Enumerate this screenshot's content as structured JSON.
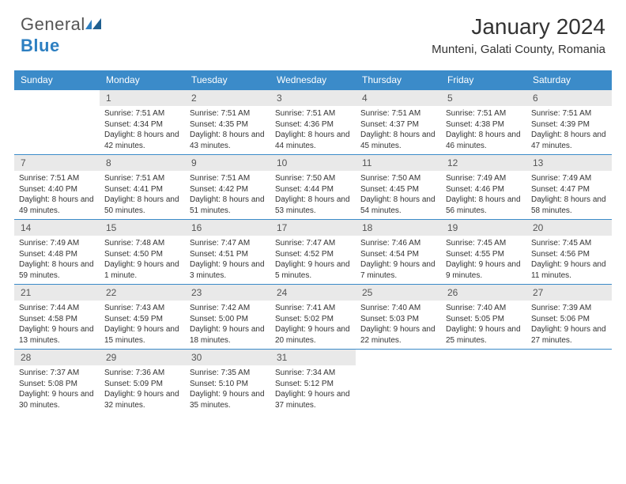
{
  "brand": {
    "part1": "General",
    "part2": "Blue"
  },
  "title": "January 2024",
  "location": "Munteni, Galati County, Romania",
  "colors": {
    "header_bg": "#3b8bc9",
    "daynum_bg": "#e9e9e9",
    "brand_blue": "#2d7fc1",
    "row_border": "#3b8bc9"
  },
  "weekdays": [
    "Sunday",
    "Monday",
    "Tuesday",
    "Wednesday",
    "Thursday",
    "Friday",
    "Saturday"
  ],
  "grid": [
    [
      null,
      {
        "n": "1",
        "sr": "7:51 AM",
        "ss": "4:34 PM",
        "dl": "8 hours and 42 minutes."
      },
      {
        "n": "2",
        "sr": "7:51 AM",
        "ss": "4:35 PM",
        "dl": "8 hours and 43 minutes."
      },
      {
        "n": "3",
        "sr": "7:51 AM",
        "ss": "4:36 PM",
        "dl": "8 hours and 44 minutes."
      },
      {
        "n": "4",
        "sr": "7:51 AM",
        "ss": "4:37 PM",
        "dl": "8 hours and 45 minutes."
      },
      {
        "n": "5",
        "sr": "7:51 AM",
        "ss": "4:38 PM",
        "dl": "8 hours and 46 minutes."
      },
      {
        "n": "6",
        "sr": "7:51 AM",
        "ss": "4:39 PM",
        "dl": "8 hours and 47 minutes."
      }
    ],
    [
      {
        "n": "7",
        "sr": "7:51 AM",
        "ss": "4:40 PM",
        "dl": "8 hours and 49 minutes."
      },
      {
        "n": "8",
        "sr": "7:51 AM",
        "ss": "4:41 PM",
        "dl": "8 hours and 50 minutes."
      },
      {
        "n": "9",
        "sr": "7:51 AM",
        "ss": "4:42 PM",
        "dl": "8 hours and 51 minutes."
      },
      {
        "n": "10",
        "sr": "7:50 AM",
        "ss": "4:44 PM",
        "dl": "8 hours and 53 minutes."
      },
      {
        "n": "11",
        "sr": "7:50 AM",
        "ss": "4:45 PM",
        "dl": "8 hours and 54 minutes."
      },
      {
        "n": "12",
        "sr": "7:49 AM",
        "ss": "4:46 PM",
        "dl": "8 hours and 56 minutes."
      },
      {
        "n": "13",
        "sr": "7:49 AM",
        "ss": "4:47 PM",
        "dl": "8 hours and 58 minutes."
      }
    ],
    [
      {
        "n": "14",
        "sr": "7:49 AM",
        "ss": "4:48 PM",
        "dl": "8 hours and 59 minutes."
      },
      {
        "n": "15",
        "sr": "7:48 AM",
        "ss": "4:50 PM",
        "dl": "9 hours and 1 minute."
      },
      {
        "n": "16",
        "sr": "7:47 AM",
        "ss": "4:51 PM",
        "dl": "9 hours and 3 minutes."
      },
      {
        "n": "17",
        "sr": "7:47 AM",
        "ss": "4:52 PM",
        "dl": "9 hours and 5 minutes."
      },
      {
        "n": "18",
        "sr": "7:46 AM",
        "ss": "4:54 PM",
        "dl": "9 hours and 7 minutes."
      },
      {
        "n": "19",
        "sr": "7:45 AM",
        "ss": "4:55 PM",
        "dl": "9 hours and 9 minutes."
      },
      {
        "n": "20",
        "sr": "7:45 AM",
        "ss": "4:56 PM",
        "dl": "9 hours and 11 minutes."
      }
    ],
    [
      {
        "n": "21",
        "sr": "7:44 AM",
        "ss": "4:58 PM",
        "dl": "9 hours and 13 minutes."
      },
      {
        "n": "22",
        "sr": "7:43 AM",
        "ss": "4:59 PM",
        "dl": "9 hours and 15 minutes."
      },
      {
        "n": "23",
        "sr": "7:42 AM",
        "ss": "5:00 PM",
        "dl": "9 hours and 18 minutes."
      },
      {
        "n": "24",
        "sr": "7:41 AM",
        "ss": "5:02 PM",
        "dl": "9 hours and 20 minutes."
      },
      {
        "n": "25",
        "sr": "7:40 AM",
        "ss": "5:03 PM",
        "dl": "9 hours and 22 minutes."
      },
      {
        "n": "26",
        "sr": "7:40 AM",
        "ss": "5:05 PM",
        "dl": "9 hours and 25 minutes."
      },
      {
        "n": "27",
        "sr": "7:39 AM",
        "ss": "5:06 PM",
        "dl": "9 hours and 27 minutes."
      }
    ],
    [
      {
        "n": "28",
        "sr": "7:37 AM",
        "ss": "5:08 PM",
        "dl": "9 hours and 30 minutes."
      },
      {
        "n": "29",
        "sr": "7:36 AM",
        "ss": "5:09 PM",
        "dl": "9 hours and 32 minutes."
      },
      {
        "n": "30",
        "sr": "7:35 AM",
        "ss": "5:10 PM",
        "dl": "9 hours and 35 minutes."
      },
      {
        "n": "31",
        "sr": "7:34 AM",
        "ss": "5:12 PM",
        "dl": "9 hours and 37 minutes."
      },
      null,
      null,
      null
    ]
  ],
  "labels": {
    "sunrise": "Sunrise:",
    "sunset": "Sunset:",
    "daylight": "Daylight:"
  }
}
